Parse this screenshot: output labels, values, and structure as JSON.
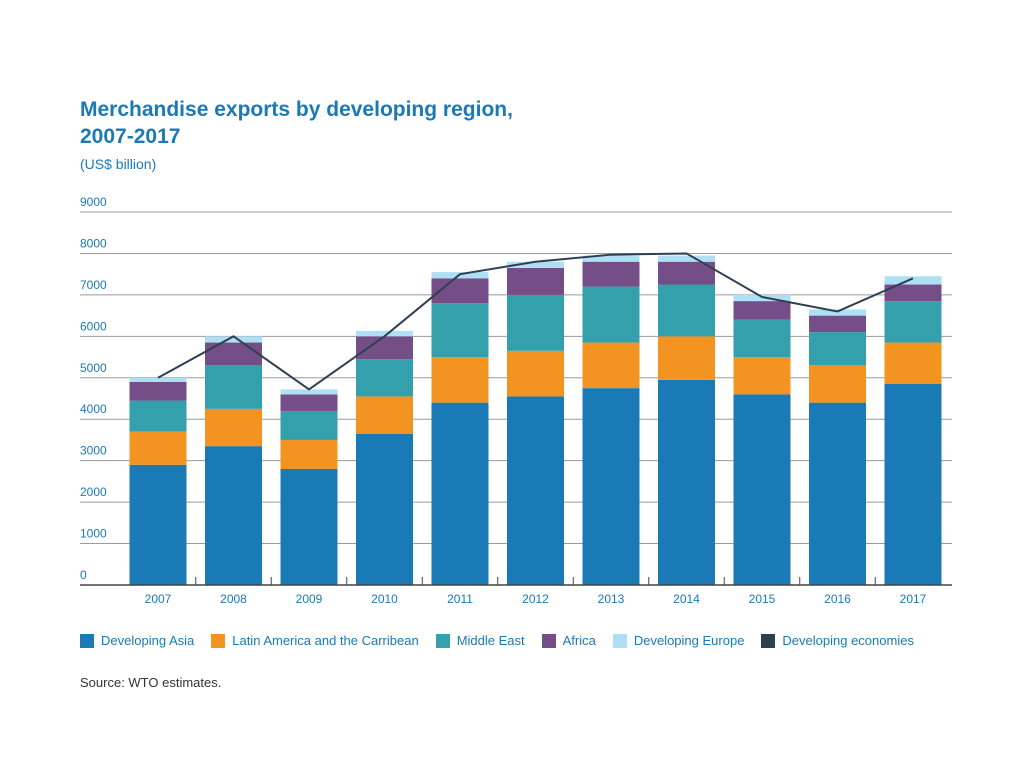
{
  "chart_data": {
    "type": "bar",
    "stacked": true,
    "title": "Merchandise exports by developing region, 2007-2017",
    "subtitle": "(US$ billion)",
    "categories": [
      "2007",
      "2008",
      "2009",
      "2010",
      "2011",
      "2012",
      "2013",
      "2014",
      "2015",
      "2016",
      "2017"
    ],
    "ylim": [
      0,
      9000
    ],
    "yticks": [
      0,
      1000,
      2000,
      3000,
      4000,
      5000,
      6000,
      7000,
      8000,
      9000
    ],
    "grid": true,
    "legend_position": "bottom",
    "series": [
      {
        "name": "Developing Asia",
        "color": "#1a7ab5",
        "values": [
          2900,
          3350,
          2800,
          3650,
          4400,
          4550,
          4750,
          4950,
          4600,
          4400,
          4850
        ]
      },
      {
        "name": "Latin America and the Carribean",
        "color": "#f39322",
        "values": [
          800,
          900,
          700,
          900,
          1100,
          1100,
          1100,
          1050,
          900,
          900,
          1000
        ]
      },
      {
        "name": "Middle East",
        "color": "#34a0ab",
        "values": [
          750,
          1050,
          700,
          900,
          1300,
          1350,
          1350,
          1250,
          900,
          800,
          1000
        ]
      },
      {
        "name": "Africa",
        "color": "#764e87",
        "values": [
          450,
          550,
          400,
          550,
          600,
          650,
          600,
          550,
          450,
          400,
          400
        ]
      },
      {
        "name": "Developing Europe",
        "color": "#aedff4",
        "values": [
          100,
          150,
          120,
          130,
          150,
          150,
          150,
          150,
          150,
          150,
          200
        ]
      },
      {
        "name": "Developing economies",
        "type": "line",
        "color": "#2e4050",
        "values": [
          5000,
          6000,
          4720,
          6000,
          7500,
          7800,
          7970,
          8000,
          6950,
          6600,
          7400
        ]
      }
    ]
  },
  "source": "Source: WTO estimates."
}
